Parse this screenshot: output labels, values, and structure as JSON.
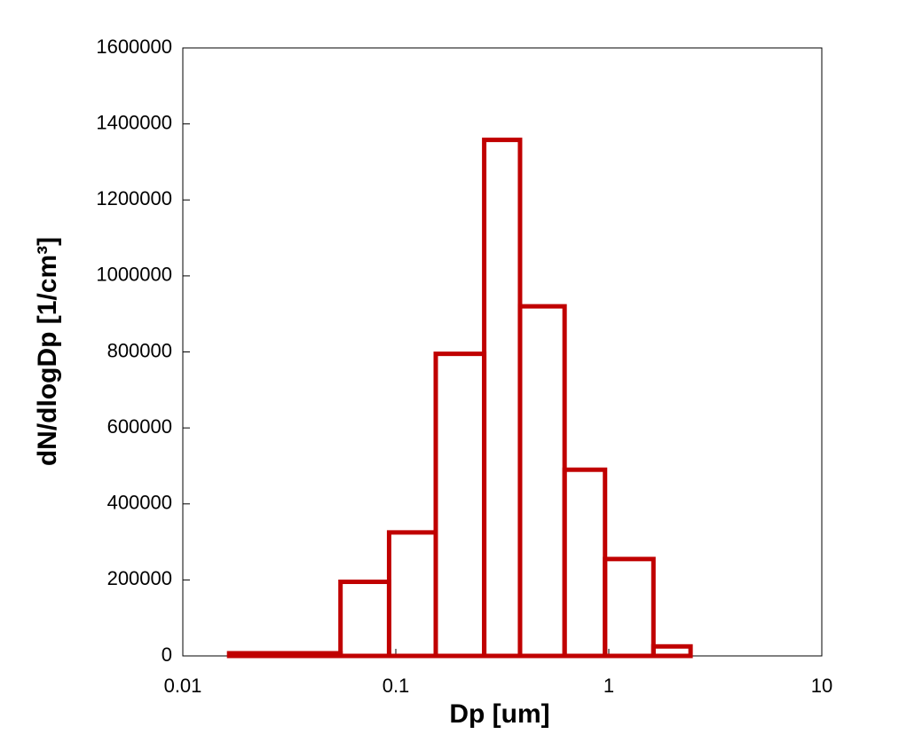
{
  "chart_data": {
    "type": "histogram",
    "x_label": "Dp [um]",
    "y_label": "dN/dlogDp  [1/cm³]",
    "bins": [
      0.01,
      0.0165,
      0.055,
      0.093,
      0.154,
      0.26,
      0.383,
      0.62,
      0.96,
      1.62,
      2.42,
      10
    ],
    "counts": [
      0,
      7000,
      195000,
      325000,
      795000,
      1358000,
      920000,
      490000,
      255000,
      25000,
      0
    ],
    "color": "#c00000",
    "xscale": "log",
    "xlim": [
      0.01,
      10
    ],
    "xticks": [
      0.01,
      0.1,
      1,
      10
    ],
    "ylim": [
      0,
      1600000
    ],
    "yticks": [
      0,
      200000,
      400000,
      600000,
      800000,
      1000000,
      1200000,
      1400000,
      1600000
    ]
  }
}
